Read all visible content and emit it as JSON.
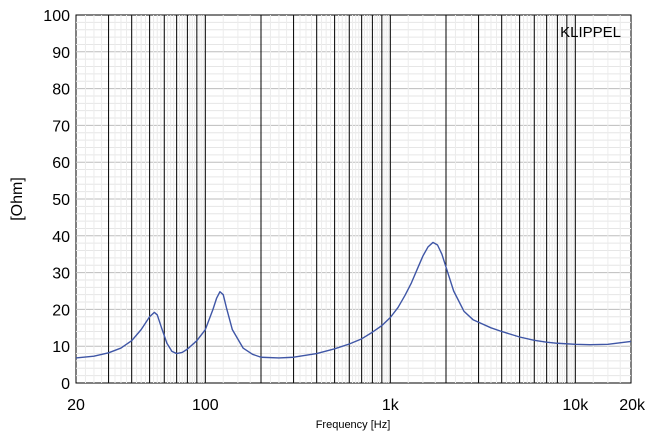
{
  "chart_data": {
    "type": "line",
    "title": "",
    "xlabel": "Frequency [Hz]",
    "ylabel": "[Ohm]",
    "x_scale": "log",
    "xlim": [
      20,
      20000
    ],
    "ylim": [
      0,
      100
    ],
    "x_tick_labels": [
      {
        "value": 20,
        "label": "20"
      },
      {
        "value": 100,
        "label": "100"
      },
      {
        "value": 1000,
        "label": "1k"
      },
      {
        "value": 10000,
        "label": "10k"
      },
      {
        "value": 20000,
        "label": "20k"
      }
    ],
    "y_ticks": [
      0,
      10,
      20,
      30,
      40,
      50,
      60,
      70,
      80,
      90,
      100
    ],
    "grid": true,
    "series": [
      {
        "color": "#3f56a6",
        "x": [
          20,
          25,
          30,
          35,
          40,
          45,
          50,
          53,
          55,
          58,
          62,
          66,
          70,
          75,
          80,
          90,
          100,
          110,
          115,
          120,
          125,
          130,
          140,
          160,
          180,
          200,
          250,
          300,
          400,
          500,
          600,
          700,
          800,
          900,
          1000,
          1100,
          1200,
          1300,
          1400,
          1500,
          1600,
          1700,
          1800,
          1900,
          2000,
          2200,
          2500,
          2800,
          3000,
          3500,
          4000,
          5000,
          6000,
          7000,
          8000,
          10000,
          12000,
          15000,
          20000
        ],
        "y": [
          6.8,
          7.3,
          8.2,
          9.5,
          11.5,
          14.5,
          18.0,
          19.2,
          18.5,
          15.0,
          10.8,
          8.6,
          8.0,
          8.3,
          9.2,
          11.5,
          14.5,
          20.0,
          23.0,
          24.8,
          24.0,
          20.5,
          14.5,
          9.5,
          7.8,
          7.0,
          6.8,
          7.0,
          8.0,
          9.3,
          10.6,
          12.0,
          13.8,
          15.6,
          17.8,
          20.5,
          23.8,
          27.2,
          31.0,
          34.5,
          37.0,
          38.2,
          37.5,
          35.0,
          31.5,
          25.0,
          19.5,
          17.2,
          16.5,
          15.0,
          14.0,
          12.5,
          11.6,
          11.1,
          10.8,
          10.5,
          10.4,
          10.5,
          11.3
        ]
      }
    ],
    "annotations": [
      "KLIPPEL"
    ]
  }
}
